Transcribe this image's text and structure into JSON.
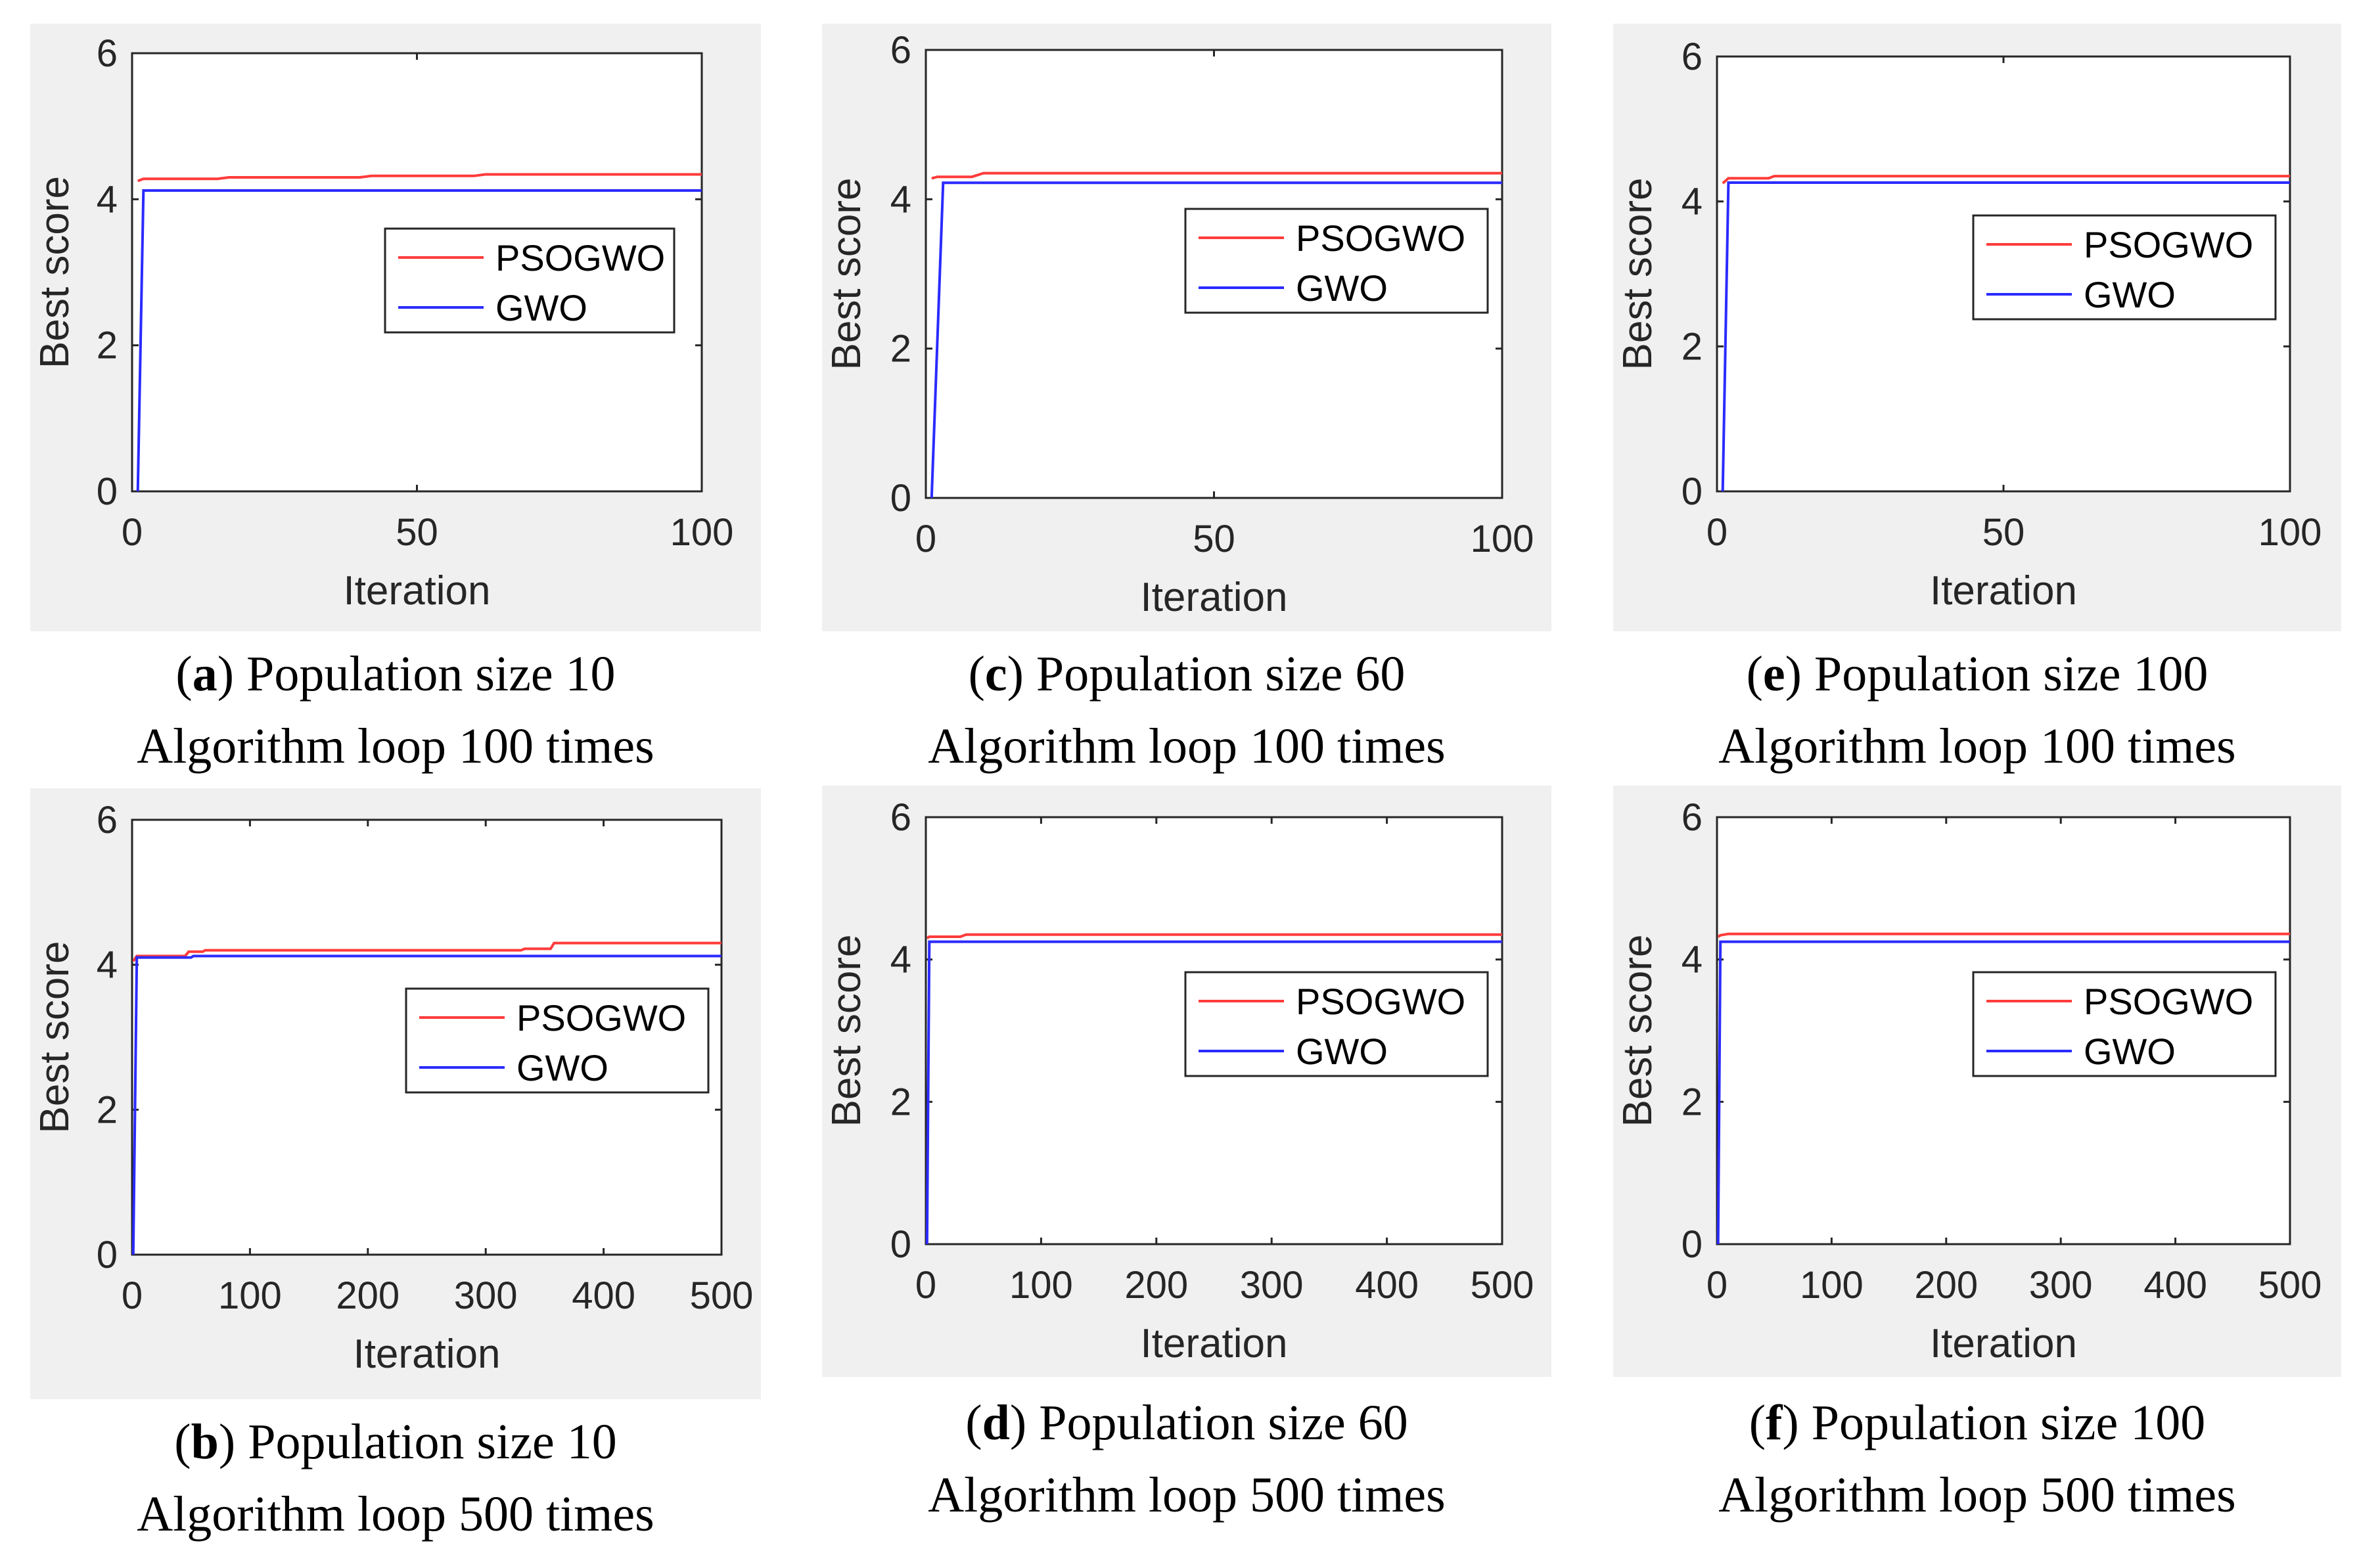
{
  "colors": {
    "pso": "#ff3b3b",
    "gwo": "#2b2bff",
    "axis": "#262626",
    "figure_bg": "#f0f0f0",
    "plot_bg": "#ffffff"
  },
  "chart_data": [
    {
      "type": "line",
      "letter": "a",
      "caption_line1": "Population size 10",
      "caption_line2": "Algorithm loop 100 times",
      "xlabel": "Iteration",
      "ylabel": "Best score",
      "xlim": [
        0,
        100
      ],
      "ylim": [
        0,
        6
      ],
      "xticks": [
        0,
        50,
        100
      ],
      "yticks": [
        0,
        2,
        4,
        6
      ],
      "legend": {
        "position": "center-right",
        "entries": [
          "PSOGWO",
          "GWO"
        ]
      },
      "series": [
        {
          "name": "PSOGWO",
          "x": [
            1,
            2,
            5,
            15,
            17,
            40,
            42,
            60,
            62,
            100
          ],
          "y": [
            4.25,
            4.28,
            4.28,
            4.28,
            4.3,
            4.3,
            4.32,
            4.32,
            4.34,
            4.34
          ]
        },
        {
          "name": "GWO",
          "x": [
            1,
            2,
            100
          ],
          "y": [
            0,
            4.12,
            4.12
          ]
        }
      ]
    },
    {
      "type": "line",
      "letter": "c",
      "caption_line1": "Population size 60",
      "caption_line2": "Algorithm loop 100 times",
      "xlabel": "Iteration",
      "ylabel": "Best score",
      "xlim": [
        0,
        100
      ],
      "ylim": [
        0,
        6
      ],
      "xticks": [
        0,
        50,
        100
      ],
      "yticks": [
        0,
        2,
        4,
        6
      ],
      "legend": {
        "position": "upper-right",
        "entries": [
          "PSOGWO",
          "GWO"
        ]
      },
      "series": [
        {
          "name": "PSOGWO",
          "x": [
            1,
            2,
            8,
            10,
            100
          ],
          "y": [
            4.28,
            4.3,
            4.3,
            4.35,
            4.35
          ]
        },
        {
          "name": "GWO",
          "x": [
            1,
            3,
            100
          ],
          "y": [
            0,
            4.22,
            4.22
          ]
        }
      ]
    },
    {
      "type": "line",
      "letter": "e",
      "caption_line1": "Population size 100",
      "caption_line2": "Algorithm loop 100 times",
      "xlabel": "Iteration",
      "ylabel": "Best score",
      "xlim": [
        0,
        100
      ],
      "ylim": [
        0,
        6
      ],
      "xticks": [
        0,
        50,
        100
      ],
      "yticks": [
        0,
        2,
        4,
        6
      ],
      "legend": {
        "position": "upper-right",
        "entries": [
          "PSOGWO",
          "GWO"
        ]
      },
      "series": [
        {
          "name": "PSOGWO",
          "x": [
            1,
            2,
            9,
            10,
            100
          ],
          "y": [
            4.25,
            4.32,
            4.32,
            4.35,
            4.35
          ]
        },
        {
          "name": "GWO",
          "x": [
            1,
            2,
            100
          ],
          "y": [
            0,
            4.26,
            4.26
          ]
        }
      ]
    },
    {
      "type": "line",
      "letter": "b",
      "caption_line1": "Population size 10",
      "caption_line2": "Algorithm loop 500 times",
      "xlabel": "Iteration",
      "ylabel": "Best score",
      "xlim": [
        0,
        500
      ],
      "ylim": [
        0,
        6
      ],
      "xticks": [
        0,
        100,
        200,
        300,
        400,
        500
      ],
      "yticks": [
        0,
        2,
        4,
        6
      ],
      "legend": {
        "position": "center-right",
        "entries": [
          "PSOGWO",
          "GWO"
        ]
      },
      "series": [
        {
          "name": "PSOGWO",
          "x": [
            1,
            4,
            45,
            48,
            60,
            62,
            330,
            333,
            355,
            358,
            500
          ],
          "y": [
            4.05,
            4.12,
            4.12,
            4.18,
            4.18,
            4.2,
            4.2,
            4.22,
            4.22,
            4.3,
            4.3
          ]
        },
        {
          "name": "GWO",
          "x": [
            1,
            4,
            50,
            52,
            500
          ],
          "y": [
            0,
            4.1,
            4.1,
            4.12,
            4.12
          ]
        }
      ]
    },
    {
      "type": "line",
      "letter": "d",
      "caption_line1": "Population size 60",
      "caption_line2": "Algorithm loop 500 times",
      "xlabel": "Iteration",
      "ylabel": "Best score",
      "xlim": [
        0,
        500
      ],
      "ylim": [
        0,
        6
      ],
      "xticks": [
        0,
        100,
        200,
        300,
        400,
        500
      ],
      "yticks": [
        0,
        2,
        4,
        6
      ],
      "legend": {
        "position": "upper-right",
        "entries": [
          "PSOGWO",
          "GWO"
        ]
      },
      "series": [
        {
          "name": "PSOGWO",
          "x": [
            1,
            3,
            30,
            35,
            500
          ],
          "y": [
            4.3,
            4.32,
            4.32,
            4.35,
            4.35
          ]
        },
        {
          "name": "GWO",
          "x": [
            1,
            3,
            500
          ],
          "y": [
            0,
            4.25,
            4.25
          ]
        }
      ]
    },
    {
      "type": "line",
      "letter": "f",
      "caption_line1": "Population size 100",
      "caption_line2": "Algorithm loop 500 times",
      "xlabel": "Iteration",
      "ylabel": "Best score",
      "xlim": [
        0,
        500
      ],
      "ylim": [
        0,
        6
      ],
      "xticks": [
        0,
        100,
        200,
        300,
        400,
        500
      ],
      "yticks": [
        0,
        2,
        4,
        6
      ],
      "legend": {
        "position": "upper-right",
        "entries": [
          "PSOGWO",
          "GWO"
        ]
      },
      "series": [
        {
          "name": "PSOGWO",
          "x": [
            1,
            3,
            10,
            500
          ],
          "y": [
            4.32,
            4.34,
            4.36,
            4.36
          ]
        },
        {
          "name": "GWO",
          "x": [
            1,
            3,
            500
          ],
          "y": [
            0,
            4.25,
            4.25
          ]
        }
      ]
    }
  ]
}
